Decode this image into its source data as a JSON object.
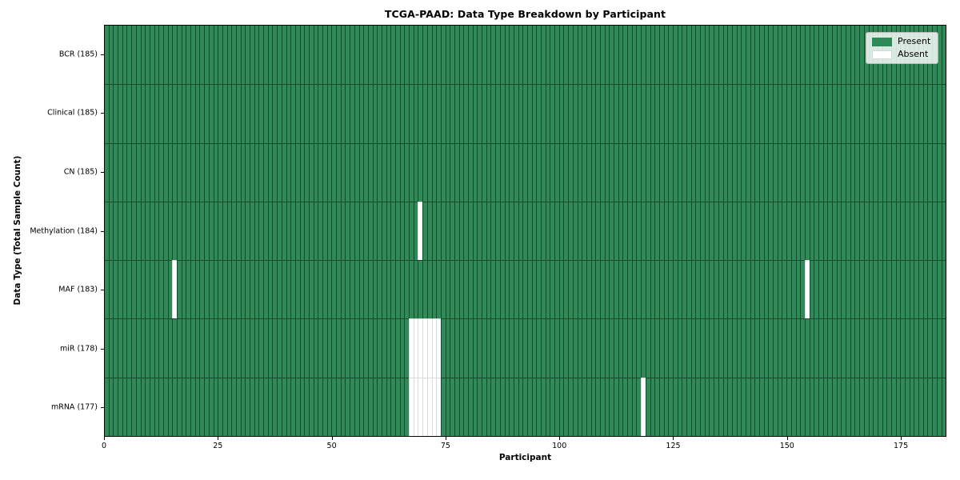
{
  "figure": {
    "title": "TCGA-PAAD: Data Type Breakdown by Participant"
  },
  "chart_data": {
    "type": "heatmap",
    "title": "TCGA-PAAD: Data Type Breakdown by Participant",
    "xlabel": "Participant",
    "ylabel": "Data Type (Total Sample Count)",
    "n_participants": 185,
    "xlim": [
      0,
      185
    ],
    "x_ticks": [
      0,
      25,
      50,
      75,
      100,
      125,
      150,
      175
    ],
    "rows": [
      {
        "label": "BCR",
        "total": 185,
        "absent_participants": []
      },
      {
        "label": "Clinical",
        "total": 185,
        "absent_participants": []
      },
      {
        "label": "CN",
        "total": 185,
        "absent_participants": []
      },
      {
        "label": "Methylation",
        "total": 184,
        "absent_participants": [
          69
        ]
      },
      {
        "label": "MAF",
        "total": 183,
        "absent_participants": [
          15,
          154
        ]
      },
      {
        "label": "miR",
        "total": 178,
        "absent_participants": [
          67,
          68,
          69,
          70,
          71,
          72,
          73
        ]
      },
      {
        "label": "mRNA",
        "total": 177,
        "absent_participants": [
          67,
          68,
          69,
          70,
          71,
          72,
          73,
          118
        ]
      }
    ],
    "legend": [
      {
        "label": "Present",
        "color": "#2e8b57"
      },
      {
        "label": "Absent",
        "color": "#ffffff"
      }
    ],
    "legend_position": "upper right",
    "grid": "per-cell edges",
    "colors": {
      "present": "#2e8b57",
      "absent": "#ffffff",
      "cell_edge_on_present": "rgba(0,0,0,0.48)",
      "cell_edge_on_absent": "rgba(0,0,0,0.14)",
      "spine": "#000000"
    }
  }
}
